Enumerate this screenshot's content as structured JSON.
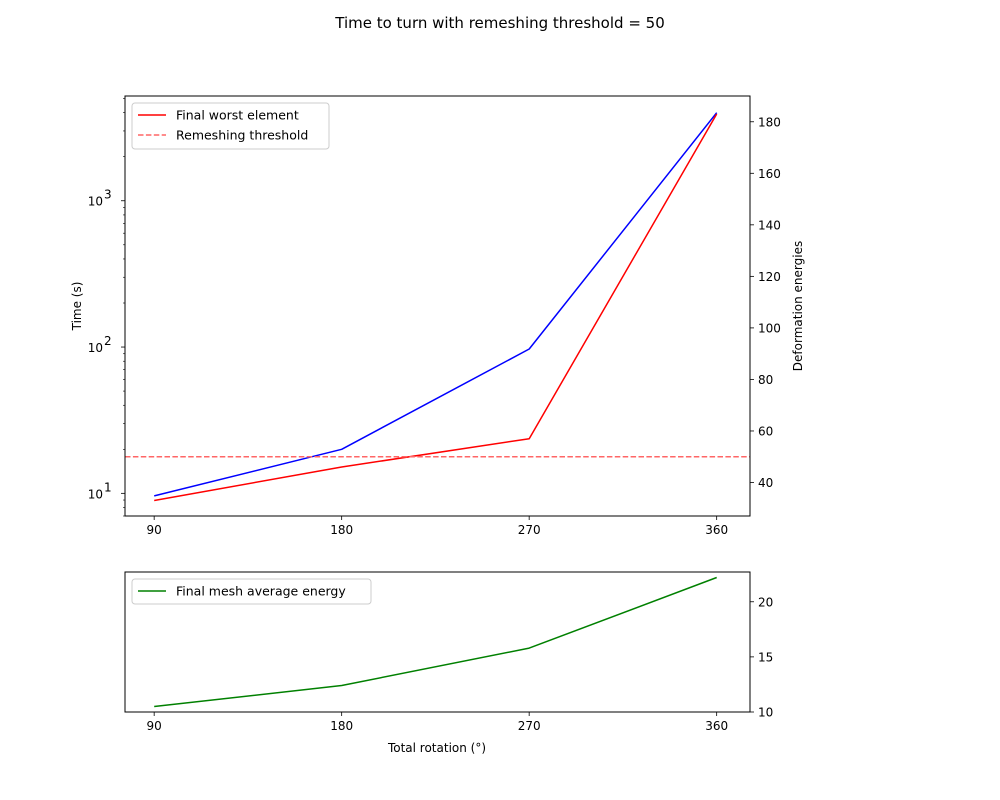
{
  "chart_data": {
    "title": "Time to turn with remeshing threshold = 50",
    "panels": [
      {
        "type": "line",
        "x": [
          90,
          180,
          270,
          360
        ],
        "x_ticks": [
          "90",
          "180",
          "270",
          "360"
        ],
        "ylabel": "Time (s)",
        "y_scale": "log",
        "ylim": [
          7,
          5200
        ],
        "y_ticks": [
          "10",
          "10",
          "10"
        ],
        "y_tick_exponents": [
          "1",
          "2",
          "3"
        ],
        "y_tick_values": [
          10,
          100,
          1000
        ],
        "y2label": "Deformation energies",
        "y2lim": [
          27,
          190
        ],
        "y2_ticks": [
          "40",
          "60",
          "80",
          "100",
          "120",
          "140",
          "160",
          "180"
        ],
        "y2_tick_values": [
          40,
          60,
          80,
          100,
          120,
          140,
          160,
          180
        ],
        "series": [
          {
            "values": [
              9.6,
              20,
              97,
              4000
            ],
            "axis": "left",
            "color": "#0000ff",
            "style": "solid"
          },
          {
            "name": "Final worst element",
            "values": [
              33,
              46,
              57,
              183
            ],
            "axis": "right",
            "color": "#ff0000",
            "style": "solid"
          },
          {
            "name": "Remeshing threshold",
            "values": [
              50,
              50,
              50,
              50
            ],
            "axis": "right",
            "color": "#ff6666",
            "style": "dashed",
            "full_width": true
          }
        ],
        "legend": {
          "placement": "upper-left",
          "entries": [
            "Final worst element",
            "Remeshing threshold"
          ]
        }
      },
      {
        "type": "line",
        "x": [
          90,
          180,
          270,
          360
        ],
        "x_ticks": [
          "90",
          "180",
          "270",
          "360"
        ],
        "xlabel": "Total rotation (°)",
        "y2lim": [
          10,
          22.7
        ],
        "y2_ticks": [
          "10",
          "15",
          "20"
        ],
        "y2_tick_values": [
          10,
          15,
          20
        ],
        "series": [
          {
            "name": "Final mesh average energy",
            "values": [
              10.5,
              12.4,
              15.8,
              22.2
            ],
            "axis": "right",
            "color": "#008000",
            "style": "solid"
          }
        ],
        "legend": {
          "placement": "upper-left",
          "entries": [
            "Final mesh average energy"
          ]
        }
      }
    ]
  }
}
